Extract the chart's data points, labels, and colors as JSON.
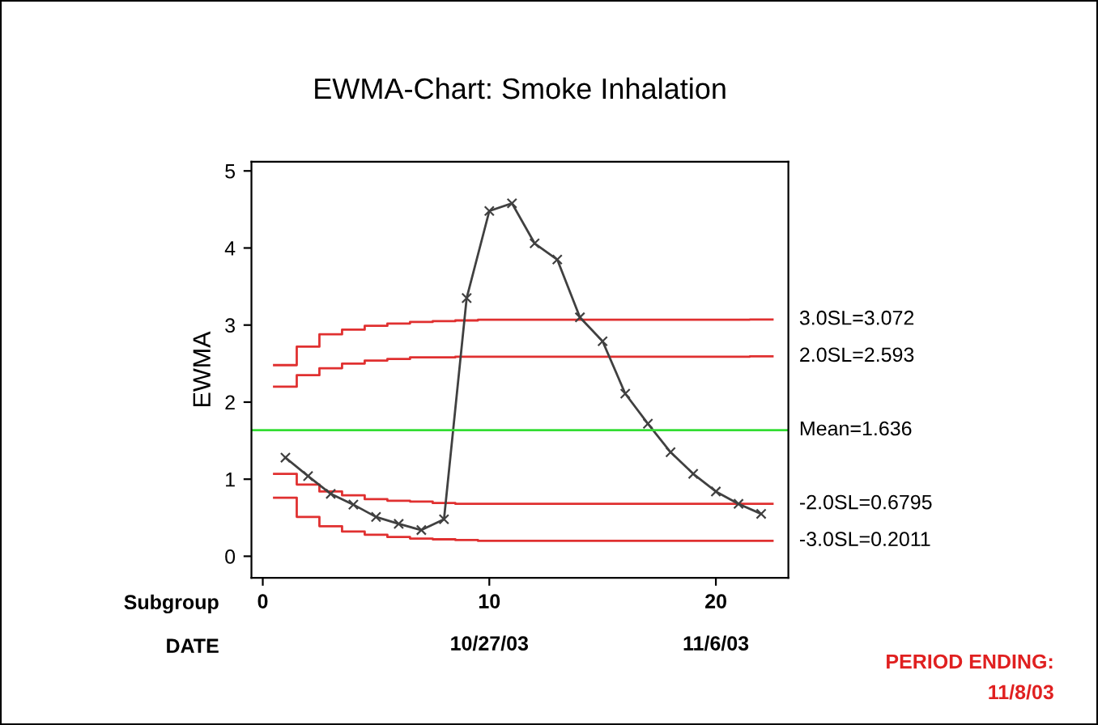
{
  "chart_data": {
    "type": "line",
    "title": "EWMA-Chart: Smoke Inhalation",
    "xlabel": "Subgroup",
    "ylabel": "EWMA",
    "x": [
      1,
      2,
      3,
      4,
      5,
      6,
      7,
      8,
      9,
      10,
      11,
      12,
      13,
      14,
      15,
      16,
      17,
      18,
      19,
      20,
      21,
      22
    ],
    "series": [
      {
        "name": "3.0SL=3.072",
        "type": "step",
        "color": "#e03030",
        "x": [
          0.5,
          1.5,
          2.5,
          3.5,
          4.5,
          5.5,
          6.5,
          7.5,
          8.5,
          9.5,
          10.5,
          11.5,
          12.5,
          13.5,
          14.5,
          15.5,
          16.5,
          17.5,
          18.5,
          19.5,
          20.5,
          21.5,
          22.5
        ],
        "values": [
          2.48,
          2.72,
          2.88,
          2.94,
          2.99,
          3.02,
          3.04,
          3.05,
          3.06,
          3.07,
          3.07,
          3.07,
          3.07,
          3.07,
          3.07,
          3.07,
          3.07,
          3.07,
          3.07,
          3.07,
          3.07,
          3.072,
          3.072
        ]
      },
      {
        "name": "2.0SL=2.593",
        "type": "step",
        "color": "#e03030",
        "x": [
          0.5,
          1.5,
          2.5,
          3.5,
          4.5,
          5.5,
          6.5,
          7.5,
          8.5,
          9.5,
          10.5,
          11.5,
          12.5,
          13.5,
          14.5,
          15.5,
          16.5,
          17.5,
          18.5,
          19.5,
          20.5,
          21.5,
          22.5
        ],
        "values": [
          2.2,
          2.35,
          2.44,
          2.5,
          2.54,
          2.56,
          2.58,
          2.58,
          2.59,
          2.59,
          2.59,
          2.59,
          2.59,
          2.59,
          2.59,
          2.59,
          2.59,
          2.59,
          2.59,
          2.59,
          2.59,
          2.593,
          2.593
        ]
      },
      {
        "name": "-2.0SL=0.6795",
        "type": "step",
        "color": "#e03030",
        "x": [
          0.5,
          1.5,
          2.5,
          3.5,
          4.5,
          5.5,
          6.5,
          7.5,
          8.5,
          9.5,
          10.5,
          11.5,
          12.5,
          13.5,
          14.5,
          15.5,
          16.5,
          17.5,
          18.5,
          19.5,
          20.5,
          21.5,
          22.5
        ],
        "values": [
          1.07,
          0.93,
          0.84,
          0.79,
          0.74,
          0.72,
          0.71,
          0.69,
          0.68,
          0.68,
          0.68,
          0.68,
          0.68,
          0.68,
          0.68,
          0.68,
          0.68,
          0.68,
          0.68,
          0.68,
          0.68,
          0.6795,
          0.6795
        ]
      },
      {
        "name": "-3.0SL=0.2011",
        "type": "step",
        "color": "#e03030",
        "x": [
          0.5,
          1.5,
          2.5,
          3.5,
          4.5,
          5.5,
          6.5,
          7.5,
          8.5,
          9.5,
          10.5,
          11.5,
          12.5,
          13.5,
          14.5,
          15.5,
          16.5,
          17.5,
          18.5,
          19.5,
          20.5,
          21.5,
          22.5
        ],
        "values": [
          0.76,
          0.51,
          0.39,
          0.32,
          0.28,
          0.25,
          0.23,
          0.22,
          0.21,
          0.2,
          0.2,
          0.2,
          0.2,
          0.2,
          0.2,
          0.2,
          0.2,
          0.2,
          0.2,
          0.2,
          0.2,
          0.2011,
          0.2011
        ]
      },
      {
        "color": "#404040",
        "marker": "cross",
        "values": [
          1.28,
          1.04,
          0.81,
          0.67,
          0.51,
          0.42,
          0.34,
          0.48,
          3.35,
          4.48,
          4.58,
          4.06,
          3.85,
          3.1,
          2.79,
          2.11,
          1.72,
          1.35,
          1.07,
          0.84,
          0.68,
          0.55
        ]
      }
    ],
    "ref_lines": [
      {
        "axis": "y",
        "value": 1.636,
        "label": "Mean=1.636",
        "color": "#33dd33"
      }
    ],
    "xlim": [
      -0.5,
      23.2
    ],
    "ylim": [
      -0.28,
      5.12
    ],
    "xticks": [
      0,
      10,
      20
    ],
    "yticks": [
      0,
      1,
      2,
      3,
      4,
      5
    ],
    "x2label": "DATE",
    "x2lim": [
      "2003-10-16T12:00",
      "2003-11-09T04:48"
    ],
    "x2ticks": [
      {
        "value": "2003-10-27",
        "label": "10/27/03"
      },
      {
        "value": "2003-11-06",
        "label": "11/6/03"
      }
    ],
    "annotations": [
      "PERIOD ENDING:\n11/8/03"
    ],
    "grid": false,
    "legend": "right"
  }
}
